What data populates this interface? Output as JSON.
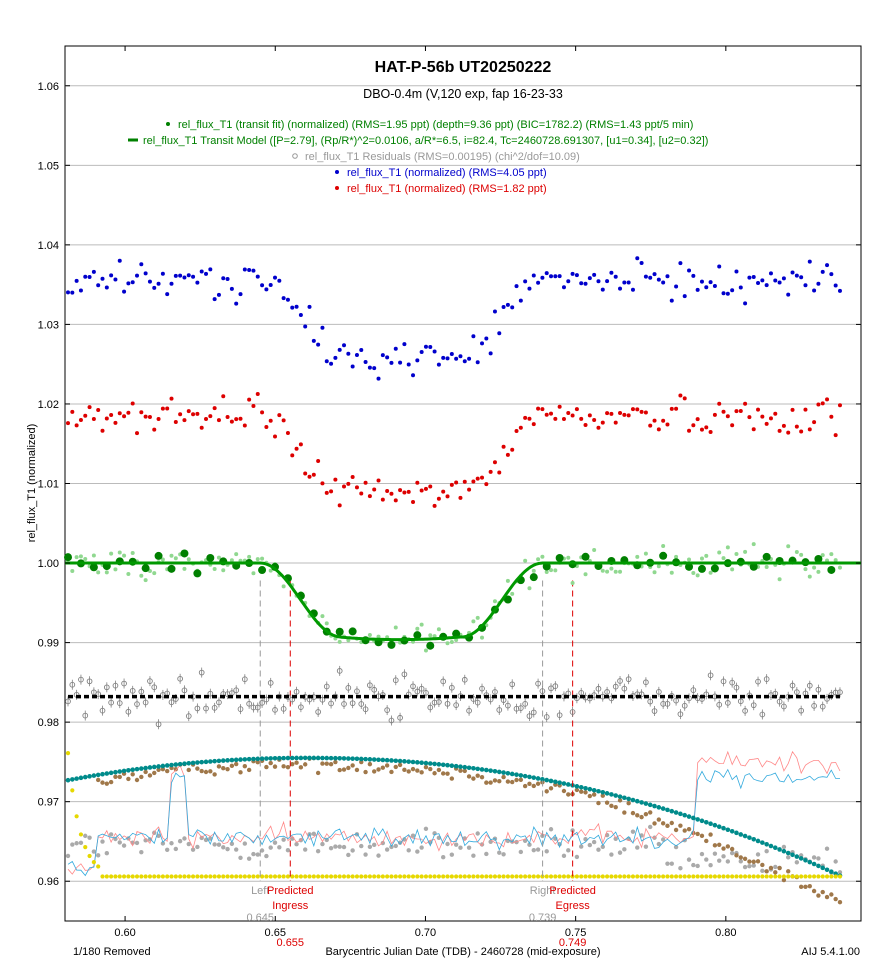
{
  "title": "HAT-P-56b UT20250222",
  "subtitle": "DBO-0.4m (V,120 exp, fap 16-23-33",
  "footer": {
    "left": "1/180 Removed",
    "right": "AIJ 5.4.1.00"
  },
  "legend": [
    {
      "marker": "dot",
      "color": "#008000",
      "text": "rel_flux_T1 (transit fit) (normalized) (RMS=1.95 ppt) (depth=9.36 ppt) (BIC=1782.2) (RMS=1.43 ppt/5 min)"
    },
    {
      "marker": "dash",
      "color": "#008000",
      "text": "rel_flux_T1 Transit Model ([P=2.79], (Rp/R*)^2=0.0106, a/R*=6.5, i=82.4, Tc=2460728.691307, [u1=0.34], [u2=0.32])"
    },
    {
      "marker": "circle",
      "color": "#999999",
      "text": "rel_flux_T1 Residuals (RMS=0.00195) (chi^2/dof=10.09)"
    },
    {
      "marker": "dot",
      "color": "#0000cc",
      "text": "rel_flux_T1 (normalized) (RMS=4.05 ppt)"
    },
    {
      "marker": "dot",
      "color": "#dd0000",
      "text": "rel_flux_T1 (normalized) (RMS=1.82 ppt)"
    }
  ],
  "markers": [
    {
      "label1": "Left",
      "label2": "",
      "value": "0.645",
      "x": 0.645,
      "color": "#999999",
      "style": "dash"
    },
    {
      "label1": "Predicted",
      "label2": "Ingress",
      "value": "0.655",
      "x": 0.655,
      "color": "#dd0000",
      "style": "dash"
    },
    {
      "label1": "Right",
      "label2": "",
      "value": "0.739",
      "x": 0.739,
      "color": "#999999",
      "style": "dash"
    },
    {
      "label1": "Predicted",
      "label2": "Egress",
      "value": "0.749",
      "x": 0.749,
      "color": "#dd0000",
      "style": "dash"
    }
  ],
  "chart_data": {
    "type": "scatter",
    "xlabel": "Barycentric Julian Date (TDB) - 2460728 (mid-exposure)",
    "ylabel": "rel_flux_T1 (normalized)",
    "xlim": [
      0.58,
      0.845
    ],
    "ylim": [
      0.955,
      1.065
    ],
    "xticks": [
      0.6,
      0.65,
      0.7,
      0.75,
      0.8
    ],
    "xtick_labels": [
      "0.60",
      "0.65",
      "0.70",
      "0.75",
      "0.80"
    ],
    "yticks": [
      0.96,
      0.97,
      0.98,
      0.99,
      1.0,
      1.01,
      1.02,
      1.03,
      1.04,
      1.05,
      1.06
    ],
    "ytick_labels": [
      "0.96",
      "0.97",
      "0.98",
      "0.99",
      "1.00",
      "1.01",
      "1.02",
      "1.03",
      "1.04",
      "1.05",
      "1.06"
    ],
    "grid": "horizontal",
    "transit": {
      "tc": 0.6913,
      "depth": 0.0093,
      "t1": 0.645,
      "t2": 0.672,
      "t3": 0.712,
      "t4": 0.739
    },
    "series": [
      {
        "name": "rel_flux_T1 (transit fit) (normalized)",
        "kind": "binned",
        "color": "#008000",
        "baseline": 1.0,
        "noise": 0.0014
      },
      {
        "name": "rel_flux_T1 Transit Model",
        "kind": "model",
        "color": "#009900",
        "baseline": 1.0
      },
      {
        "name": "rel_flux_T1 Residuals",
        "kind": "residuals",
        "color": "#808080",
        "baseline": 0.9832,
        "noise": 0.0019
      },
      {
        "name": "rel_flux_T1 (normalized) (RMS=4.05 ppt)",
        "kind": "scatter",
        "color": "#0000cc",
        "baseline": 1.0355,
        "noise": 0.0016
      },
      {
        "name": "rel_flux_T1 (normalized) (RMS=1.82 ppt)",
        "kind": "scatter",
        "color": "#dd0000",
        "baseline": 1.0185,
        "noise": 0.0016
      }
    ],
    "aux_series": [
      {
        "kind": "airmass",
        "color": "#008b8b",
        "peak": 0.9755,
        "peak_x": 0.66,
        "start": 0.9727,
        "end": 0.9607
      },
      {
        "kind": "brown",
        "color": "#a0784a",
        "level": 0.9745
      },
      {
        "kind": "yellow",
        "color": "#e6d800",
        "level": 0.9606
      },
      {
        "kind": "gray",
        "color": "#aaaaaa",
        "level": 0.9645
      },
      {
        "kind": "pink_line",
        "color": "#ff8888",
        "level": 0.9655
      },
      {
        "kind": "cyan_line",
        "color": "#33aadd",
        "level": 0.9655
      }
    ]
  }
}
